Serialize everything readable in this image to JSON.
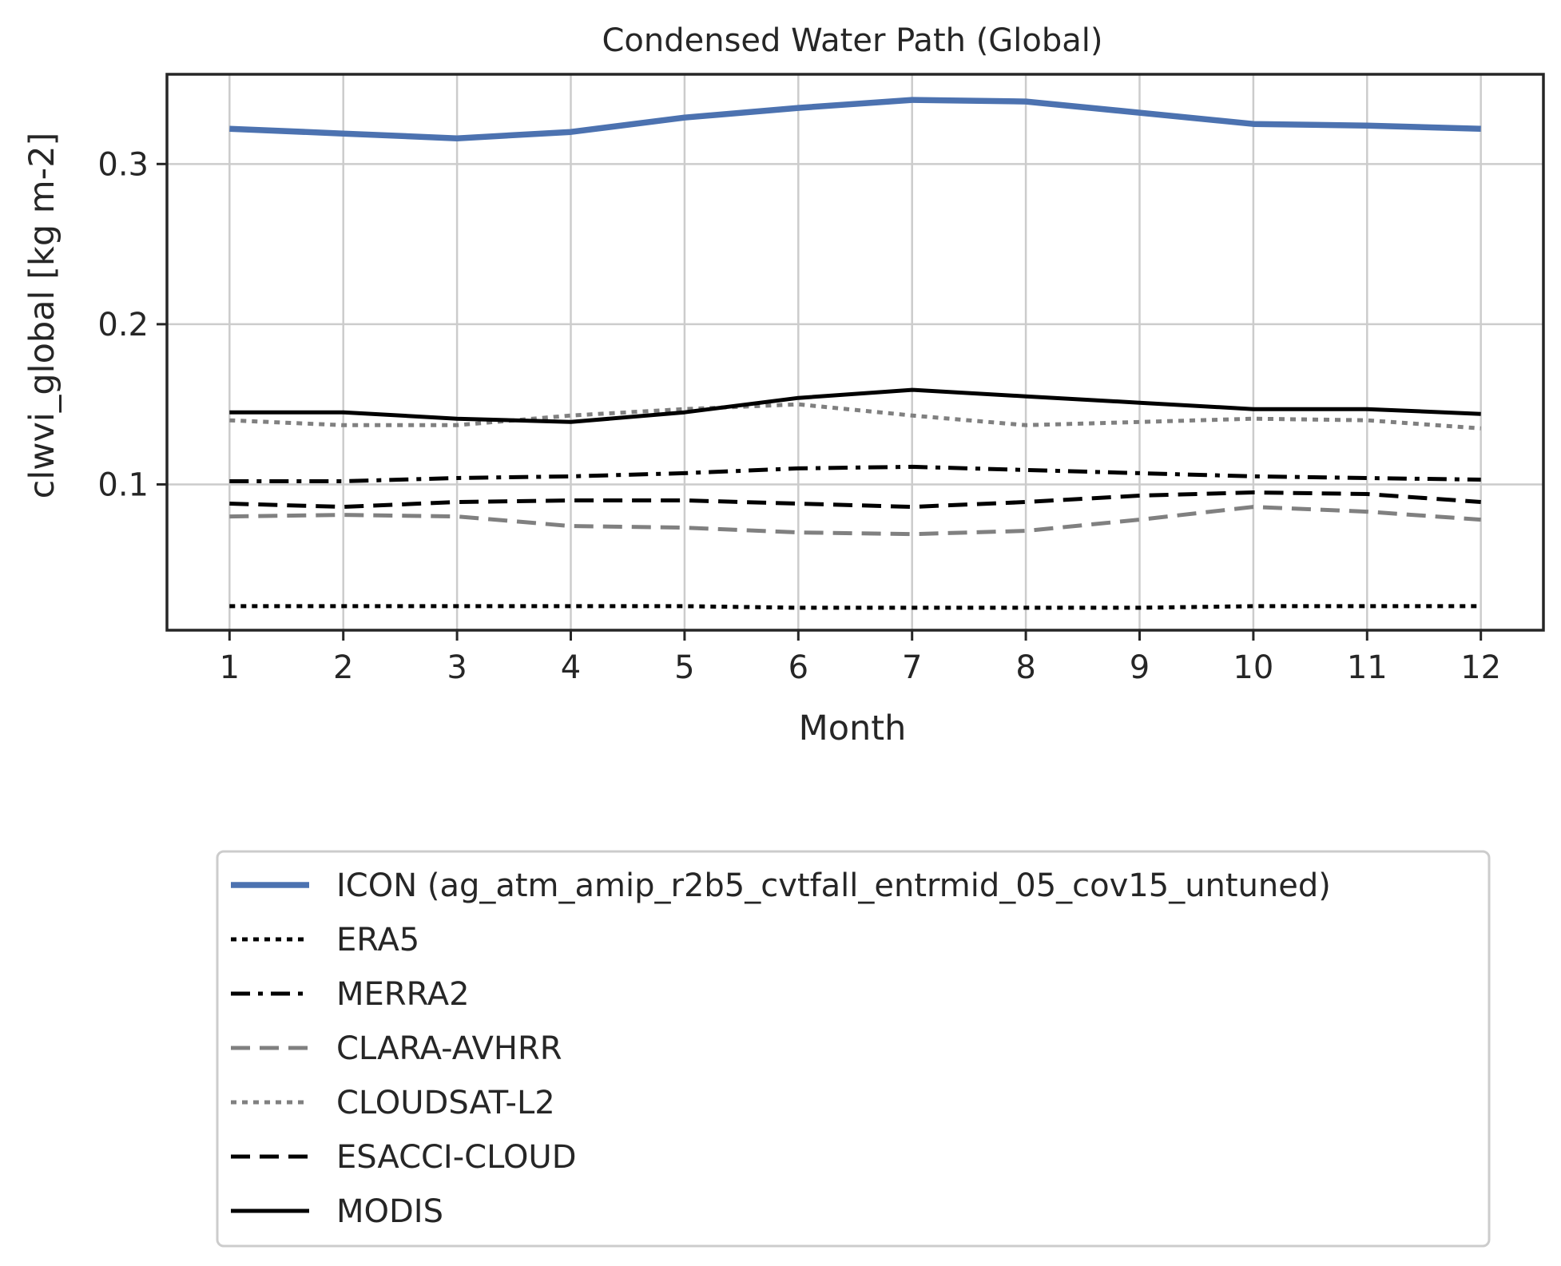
{
  "chart_data": {
    "type": "line",
    "title": "Condensed Water Path (Global)",
    "xlabel": "Month",
    "ylabel": "clwvi_global [kg m-2]",
    "x": [
      1,
      2,
      3,
      4,
      5,
      6,
      7,
      8,
      9,
      10,
      11,
      12
    ],
    "xlim": [
      0.45,
      12.55
    ],
    "ylim": [
      0.009,
      0.356
    ],
    "xticks": [
      1,
      2,
      3,
      4,
      5,
      6,
      7,
      8,
      9,
      10,
      11,
      12
    ],
    "xtick_labels": [
      "1",
      "2",
      "3",
      "4",
      "5",
      "6",
      "7",
      "8",
      "9",
      "10",
      "11",
      "12"
    ],
    "yticks": [
      0.1,
      0.2,
      0.3
    ],
    "ytick_labels": [
      "0.1",
      "0.2",
      "0.3"
    ],
    "grid": true,
    "legend_position": "below",
    "series": [
      {
        "name": "ICON (ag_atm_amip_r2b5_cvtfall_entrmid_05_cov15_untuned)",
        "color": "#4c72b0",
        "style": "solid",
        "width": "thick",
        "values": [
          0.322,
          0.319,
          0.316,
          0.32,
          0.329,
          0.335,
          0.34,
          0.339,
          0.332,
          0.325,
          0.324,
          0.322
        ]
      },
      {
        "name": "ERA5",
        "color": "#000000",
        "style": "dotted",
        "width": "normal",
        "values": [
          0.024,
          0.024,
          0.024,
          0.024,
          0.024,
          0.023,
          0.023,
          0.023,
          0.023,
          0.024,
          0.024,
          0.024
        ]
      },
      {
        "name": "MERRA2",
        "color": "#000000",
        "style": "dashdot",
        "width": "normal",
        "values": [
          0.102,
          0.102,
          0.104,
          0.105,
          0.107,
          0.11,
          0.111,
          0.109,
          0.107,
          0.105,
          0.104,
          0.103
        ]
      },
      {
        "name": "CLARA-AVHRR",
        "color": "#808080",
        "style": "dashed",
        "width": "normal",
        "values": [
          0.08,
          0.081,
          0.08,
          0.074,
          0.073,
          0.07,
          0.069,
          0.071,
          0.078,
          0.086,
          0.083,
          0.078
        ]
      },
      {
        "name": "CLOUDSAT-L2",
        "color": "#808080",
        "style": "dotted",
        "width": "normal",
        "values": [
          0.14,
          0.137,
          0.137,
          0.143,
          0.147,
          0.15,
          0.143,
          0.137,
          0.139,
          0.141,
          0.14,
          0.135
        ]
      },
      {
        "name": "ESACCI-CLOUD",
        "color": "#000000",
        "style": "dashed",
        "width": "normal",
        "values": [
          0.088,
          0.086,
          0.089,
          0.09,
          0.09,
          0.088,
          0.086,
          0.089,
          0.093,
          0.095,
          0.094,
          0.089
        ]
      },
      {
        "name": "MODIS",
        "color": "#000000",
        "style": "solid",
        "width": "normal",
        "values": [
          0.145,
          0.145,
          0.141,
          0.139,
          0.145,
          0.154,
          0.159,
          0.155,
          0.151,
          0.147,
          0.147,
          0.144
        ]
      }
    ]
  }
}
